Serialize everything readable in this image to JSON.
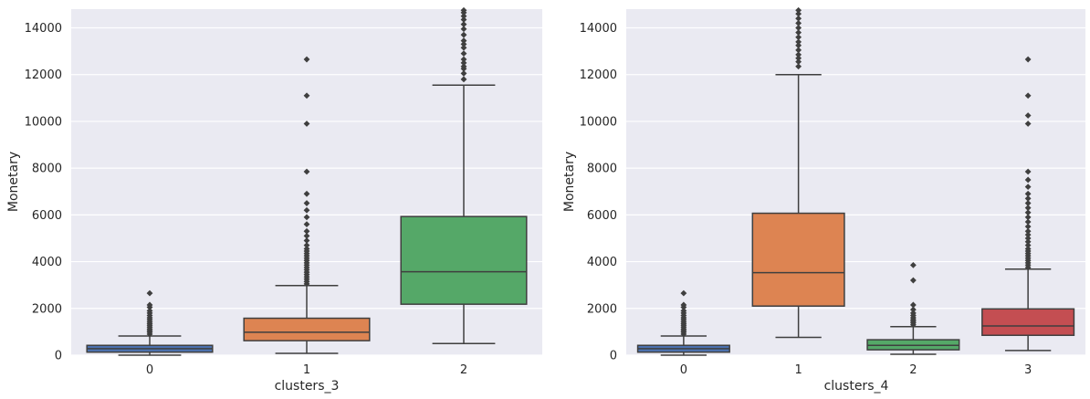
{
  "chart_data": [
    {
      "type": "boxplot",
      "xlabel": "clusters_3",
      "ylabel": "Monetary",
      "ylim": [
        0,
        14800
      ],
      "yticks": [
        0,
        2000,
        4000,
        6000,
        8000,
        10000,
        12000,
        14000
      ],
      "grid": true,
      "categories": [
        "0",
        "1",
        "2"
      ],
      "boxes": [
        {
          "category": "0",
          "color": "#4c72b0",
          "whisker_low": 0,
          "q1": 130,
          "median": 280,
          "q3": 420,
          "whisker_high": 820,
          "outliers": [
            900,
            980,
            1050,
            1120,
            1200,
            1280,
            1350,
            1430,
            1520,
            1600,
            1700,
            1800,
            1900,
            2050,
            2150,
            2650
          ]
        },
        {
          "category": "1",
          "color": "#dd8452",
          "whisker_low": 80,
          "q1": 620,
          "median": 980,
          "q3": 1580,
          "whisker_high": 2980,
          "outliers": [
            3050,
            3150,
            3250,
            3350,
            3450,
            3550,
            3650,
            3750,
            3850,
            3950,
            4050,
            4150,
            4250,
            4350,
            4450,
            4550,
            4700,
            4900,
            5100,
            5300,
            5600,
            5900,
            6200,
            6500,
            6900,
            7850,
            9900,
            11100,
            12650
          ]
        },
        {
          "category": "2",
          "color": "#55a868",
          "whisker_low": 500,
          "q1": 2180,
          "median": 3570,
          "q3": 5930,
          "whisker_high": 11550,
          "outliers": [
            11800,
            12050,
            12250,
            12350,
            12500,
            12650,
            12900,
            13150,
            13300,
            13450,
            13700,
            13950,
            14150,
            14350,
            14500,
            14650,
            14750
          ]
        }
      ]
    },
    {
      "type": "boxplot",
      "xlabel": "clusters_4",
      "ylabel": "Monetary",
      "ylim": [
        0,
        14800
      ],
      "yticks": [
        0,
        2000,
        4000,
        6000,
        8000,
        10000,
        12000,
        14000
      ],
      "grid": true,
      "categories": [
        "0",
        "1",
        "2",
        "3"
      ],
      "boxes": [
        {
          "category": "0",
          "color": "#4c72b0",
          "whisker_low": 0,
          "q1": 130,
          "median": 280,
          "q3": 420,
          "whisker_high": 820,
          "outliers": [
            900,
            980,
            1050,
            1120,
            1200,
            1280,
            1350,
            1430,
            1520,
            1600,
            1700,
            1800,
            1900,
            2050,
            2150,
            2650
          ]
        },
        {
          "category": "1",
          "color": "#dd8452",
          "whisker_low": 760,
          "q1": 2100,
          "median": 3530,
          "q3": 6070,
          "whisker_high": 12000,
          "outliers": [
            12350,
            12550,
            12700,
            12850,
            13050,
            13250,
            13400,
            13600,
            13800,
            14000,
            14200,
            14400,
            14600,
            14750
          ]
        },
        {
          "category": "2",
          "color": "#55a868",
          "whisker_low": 40,
          "q1": 230,
          "median": 420,
          "q3": 660,
          "whisker_high": 1220,
          "outliers": [
            1300,
            1380,
            1450,
            1520,
            1600,
            1700,
            1800,
            1950,
            2150,
            3200,
            3850
          ]
        },
        {
          "category": "3",
          "color": "#c44e52",
          "whisker_low": 200,
          "q1": 850,
          "median": 1250,
          "q3": 1980,
          "whisker_high": 3680,
          "outliers": [
            3750,
            3850,
            3950,
            4050,
            4150,
            4250,
            4350,
            4450,
            4550,
            4700,
            4850,
            5000,
            5150,
            5300,
            5500,
            5700,
            5900,
            6100,
            6300,
            6500,
            6700,
            6900,
            7200,
            7500,
            7850,
            9900,
            10250,
            11100,
            12650
          ]
        }
      ]
    }
  ]
}
